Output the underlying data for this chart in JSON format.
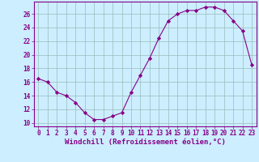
{
  "x": [
    0,
    1,
    2,
    3,
    4,
    5,
    6,
    7,
    8,
    9,
    10,
    11,
    12,
    13,
    14,
    15,
    16,
    17,
    18,
    19,
    20,
    21,
    22,
    23
  ],
  "y": [
    16.5,
    16.0,
    14.5,
    14.0,
    13.0,
    11.5,
    10.5,
    10.5,
    11.0,
    11.5,
    14.5,
    17.0,
    19.5,
    22.5,
    25.0,
    26.0,
    26.5,
    26.5,
    27.0,
    27.0,
    26.5,
    25.0,
    23.5,
    18.5
  ],
  "line_color": "#880088",
  "marker": "D",
  "marker_size": 2.2,
  "bg_color": "#cceeff",
  "grid_color": "#99bbbb",
  "xlabel": "Windchill (Refroidissement éolien,°C)",
  "xlim": [
    -0.5,
    23.5
  ],
  "ylim": [
    9.5,
    27.8
  ],
  "yticks": [
    10,
    12,
    14,
    16,
    18,
    20,
    22,
    24,
    26
  ],
  "xticks": [
    0,
    1,
    2,
    3,
    4,
    5,
    6,
    7,
    8,
    9,
    10,
    11,
    12,
    13,
    14,
    15,
    16,
    17,
    18,
    19,
    20,
    21,
    22,
    23
  ],
  "tick_fontsize": 5.5,
  "xlabel_fontsize": 6.5
}
